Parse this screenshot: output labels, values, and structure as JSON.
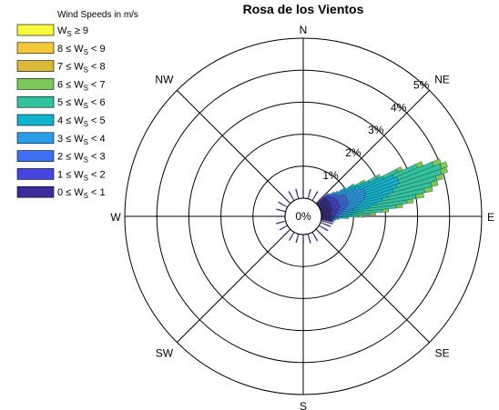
{
  "chart_data": {
    "type": "wind-rose",
    "title": "Rosa de los Vientos",
    "legend_title": "Wind Speeds in m/s",
    "legend_placement": "top-left",
    "radial_ticks": [
      "0%",
      "1%",
      "2%",
      "3%",
      "4%",
      "5%"
    ],
    "radial_tick_values": [
      0,
      1,
      2,
      3,
      4,
      5
    ],
    "rmax": 5,
    "directions": [
      "N",
      "NE",
      "E",
      "SE",
      "S",
      "SW",
      "W",
      "NW"
    ],
    "speed_bins": [
      {
        "label_prefix": "W",
        "sub": "S",
        "label_suffix": " ≥ 9",
        "color": "#f6f93c"
      },
      {
        "label_prefix": "8 ≤ W",
        "sub": "S",
        "label_suffix": " < 9",
        "color": "#f3c93a"
      },
      {
        "label_prefix": "7 ≤ W",
        "sub": "S",
        "label_suffix": " < 8",
        "color": "#d9b93a"
      },
      {
        "label_prefix": "6 ≤ W",
        "sub": "S",
        "label_suffix": " < 7",
        "color": "#7cc85a"
      },
      {
        "label_prefix": "5 ≤ W",
        "sub": "S",
        "label_suffix": " < 6",
        "color": "#33c2a0"
      },
      {
        "label_prefix": "4 ≤ W",
        "sub": "S",
        "label_suffix": " < 5",
        "color": "#13b2cc"
      },
      {
        "label_prefix": "3 ≤ W",
        "sub": "S",
        "label_suffix": " < 4",
        "color": "#2a9de6"
      },
      {
        "label_prefix": "2 ≤ W",
        "sub": "S",
        "label_suffix": " < 3",
        "color": "#3e6ff0"
      },
      {
        "label_prefix": "1 ≤ W",
        "sub": "S",
        "label_suffix": " < 2",
        "color": "#4546e0"
      },
      {
        "label_prefix": "0 ≤ W",
        "sub": "S",
        "label_suffix": " < 1",
        "color": "#3a2c9a"
      }
    ],
    "sector_width_deg": 2,
    "sectors_compass_deg": [
      {
        "dir": 60,
        "cum": [
          0.35,
          0.55,
          0.75,
          1.05,
          1.35,
          1.55,
          1.65
        ]
      },
      {
        "dir": 62,
        "cum": [
          0.35,
          0.6,
          0.85,
          1.25,
          1.75,
          2.05,
          2.15
        ]
      },
      {
        "dir": 64,
        "cum": [
          0.35,
          0.6,
          0.9,
          1.4,
          2.2,
          2.7,
          2.85
        ]
      },
      {
        "dir": 66,
        "cum": [
          0.35,
          0.6,
          0.9,
          1.5,
          2.5,
          3.3,
          3.5
        ]
      },
      {
        "dir": 68,
        "cum": [
          0.35,
          0.6,
          0.9,
          1.5,
          2.6,
          3.8,
          4.05
        ]
      },
      {
        "dir": 70,
        "cum": [
          0.35,
          0.6,
          0.9,
          1.5,
          2.6,
          4.0,
          4.2
        ]
      },
      {
        "dir": 72,
        "cum": [
          0.35,
          0.6,
          0.9,
          1.45,
          2.5,
          3.95,
          4.15
        ]
      },
      {
        "dir": 74,
        "cum": [
          0.35,
          0.6,
          0.9,
          1.4,
          2.35,
          3.75,
          3.95
        ]
      },
      {
        "dir": 76,
        "cum": [
          0.35,
          0.6,
          0.85,
          1.3,
          2.15,
          3.55,
          3.75
        ]
      },
      {
        "dir": 78,
        "cum": [
          0.35,
          0.55,
          0.8,
          1.2,
          1.95,
          3.3,
          3.55
        ]
      },
      {
        "dir": 80,
        "cum": [
          0.3,
          0.55,
          0.75,
          1.1,
          1.75,
          3.0,
          3.25
        ]
      },
      {
        "dir": 82,
        "cum": [
          0.3,
          0.5,
          0.7,
          1.0,
          1.5,
          2.7,
          2.9
        ]
      },
      {
        "dir": 84,
        "cum": [
          0.3,
          0.5,
          0.65,
          0.9,
          1.3,
          2.35,
          2.55
        ]
      },
      {
        "dir": 86,
        "cum": [
          0.3,
          0.45,
          0.6,
          0.8,
          1.1,
          1.9,
          2.1
        ]
      },
      {
        "dir": 88,
        "cum": [
          0.3,
          0.45,
          0.55,
          0.7,
          0.95,
          1.5,
          1.7
        ]
      },
      {
        "dir": 90,
        "cum": [
          0.3,
          0.4,
          0.5,
          0.65,
          0.8,
          1.15,
          1.3
        ]
      },
      {
        "dir": 92,
        "cum": [
          0.3,
          0.4,
          0.45,
          0.55,
          0.65,
          0.85
        ]
      },
      {
        "dir": 94,
        "cum": [
          0.3,
          0.35,
          0.42,
          0.5,
          0.55
        ]
      },
      {
        "dir": 56,
        "cum": [
          0.35,
          0.5,
          0.65,
          0.85,
          1.0
        ]
      },
      {
        "dir": 58,
        "cum": [
          0.35,
          0.55,
          0.7,
          0.95,
          1.2,
          1.3
        ]
      },
      {
        "dir": 52,
        "cum": [
          0.35,
          0.45,
          0.55,
          0.65
        ]
      },
      {
        "dir": 54,
        "cum": [
          0.35,
          0.48,
          0.6,
          0.75
        ]
      },
      {
        "dir": 96,
        "cum": [
          0.3,
          0.35,
          0.4,
          0.45
        ]
      },
      {
        "dir": 98,
        "cum": [
          0.3,
          0.34,
          0.38
        ]
      },
      {
        "dir": 100,
        "cum": [
          0.32,
          0.36,
          0.4
        ]
      },
      {
        "dir": 104,
        "cum": [
          0.3,
          0.35,
          0.38
        ]
      },
      {
        "dir": 110,
        "cum": [
          0.28,
          0.34
        ]
      },
      {
        "dir": 120,
        "cum": [
          0.27,
          0.32
        ]
      },
      {
        "dir": 135,
        "cum": [
          0.26,
          0.3
        ]
      },
      {
        "dir": 150,
        "cum": [
          0.25,
          0.32
        ]
      },
      {
        "dir": 165,
        "cum": [
          0.27,
          0.3
        ]
      },
      {
        "dir": 180,
        "cum": [
          0.26,
          0.31
        ]
      },
      {
        "dir": 195,
        "cum": [
          0.25,
          0.28
        ]
      },
      {
        "dir": 210,
        "cum": [
          0.24,
          0.3
        ]
      },
      {
        "dir": 225,
        "cum": [
          0.24,
          0.27
        ]
      },
      {
        "dir": 240,
        "cum": [
          0.23,
          0.28
        ]
      },
      {
        "dir": 255,
        "cum": [
          0.24,
          0.3
        ]
      },
      {
        "dir": 270,
        "cum": [
          0.23,
          0.27
        ]
      },
      {
        "dir": 285,
        "cum": [
          0.24,
          0.3
        ]
      },
      {
        "dir": 300,
        "cum": [
          0.25,
          0.32
        ]
      },
      {
        "dir": 315,
        "cum": [
          0.26,
          0.34
        ]
      },
      {
        "dir": 330,
        "cum": [
          0.27,
          0.33
        ]
      },
      {
        "dir": 345,
        "cum": [
          0.26,
          0.32
        ]
      },
      {
        "dir": 0,
        "cum": [
          0.25,
          0.3
        ]
      },
      {
        "dir": 15,
        "cum": [
          0.26,
          0.31
        ]
      },
      {
        "dir": 30,
        "cum": [
          0.28,
          0.33
        ]
      },
      {
        "dir": 45,
        "cum": [
          0.3,
          0.38,
          0.45
        ]
      },
      {
        "dir": 48,
        "cum": [
          0.32,
          0.4,
          0.48
        ]
      },
      {
        "dir": 50,
        "cum": [
          0.34,
          0.42,
          0.52
        ]
      }
    ]
  }
}
